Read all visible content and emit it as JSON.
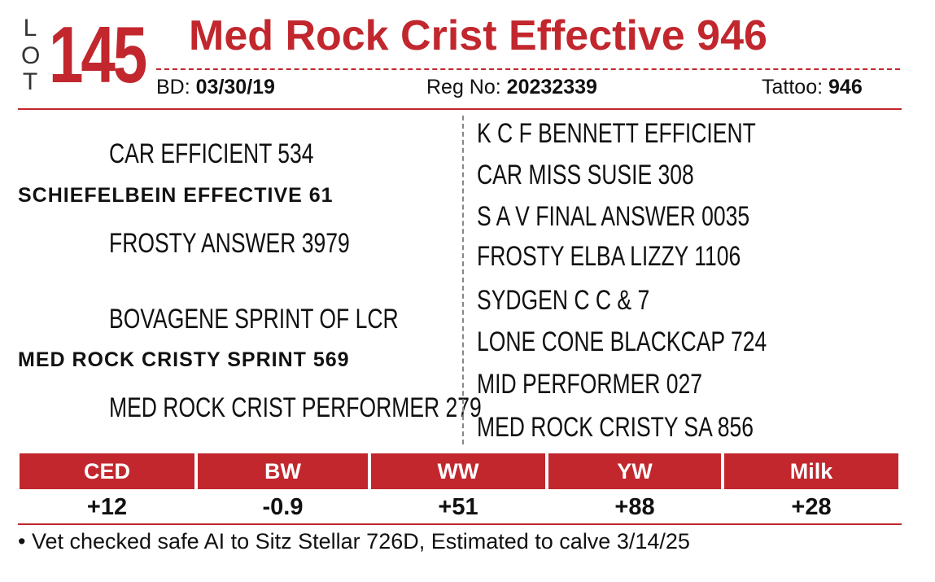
{
  "lot": {
    "letters": [
      "L",
      "O",
      "T"
    ],
    "number": "145"
  },
  "animal": {
    "name": "Med Rock Crist Effective 946",
    "bd_label": "BD:",
    "bd": "03/30/19",
    "reg_label": "Reg No:",
    "reg": "20232339",
    "tattoo_label": "Tattoo:",
    "tattoo": "946"
  },
  "pedigree": {
    "sire": "SCHIEFELBEIN EFFECTIVE 61",
    "sire_sire": "CAR EFFICIENT 534",
    "sire_dam": "FROSTY ANSWER 3979",
    "dam": "MED ROCK CRISTY SPRINT 569",
    "dam_sire": "BOVAGENE SPRINT OF LCR",
    "dam_dam": "MED ROCK CRIST PERFORMER 279",
    "great_grandparents": [
      "K C F BENNETT EFFICIENT",
      "CAR MISS SUSIE 308",
      "S A V FINAL ANSWER 0035",
      "FROSTY ELBA LIZZY 1106",
      "SYDGEN C C & 7",
      "LONE CONE BLACKCAP 724",
      "MID PERFORMER 027",
      "MED ROCK CRISTY SA 856"
    ]
  },
  "epd": {
    "headers": [
      "CED",
      "BW",
      "WW",
      "YW",
      "Milk"
    ],
    "values": [
      "+12",
      "-0.9",
      "+51",
      "+88",
      "+28"
    ]
  },
  "note": "• Vet checked safe AI to Sitz Stellar 726D, Estimated to calve 3/14/25",
  "colors": {
    "accent": "#c1272d"
  }
}
